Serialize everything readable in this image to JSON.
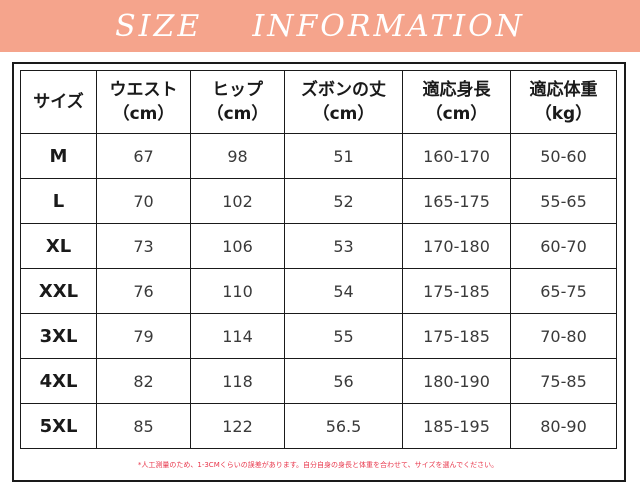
{
  "banner": {
    "title": "SIZE    INFORMATION",
    "color": "#f5a48c"
  },
  "table": {
    "headers": [
      {
        "line1": "サイズ",
        "line2": ""
      },
      {
        "line1": "ウエスト",
        "line2": "（cm）"
      },
      {
        "line1": "ヒップ",
        "line2": "（cm）"
      },
      {
        "line1": "ズボンの丈",
        "line2": "（cm）"
      },
      {
        "line1": "適応身長",
        "line2": "（cm）"
      },
      {
        "line1": "適応体重",
        "line2": "（kg）"
      }
    ],
    "rows": [
      {
        "size": "M",
        "waist": "67",
        "hip": "98",
        "length": "51",
        "height": "160-170",
        "weight": "50-60"
      },
      {
        "size": "L",
        "waist": "70",
        "hip": "102",
        "length": "52",
        "height": "165-175",
        "weight": "55-65"
      },
      {
        "size": "XL",
        "waist": "73",
        "hip": "106",
        "length": "53",
        "height": "170-180",
        "weight": "60-70"
      },
      {
        "size": "XXL",
        "waist": "76",
        "hip": "110",
        "length": "54",
        "height": "175-185",
        "weight": "65-75"
      },
      {
        "size": "3XL",
        "waist": "79",
        "hip": "114",
        "length": "55",
        "height": "175-185",
        "weight": "70-80"
      },
      {
        "size": "4XL",
        "waist": "82",
        "hip": "118",
        "length": "56",
        "height": "180-190",
        "weight": "75-85"
      },
      {
        "size": "5XL",
        "waist": "85",
        "hip": "122",
        "length": "56.5",
        "height": "185-195",
        "weight": "80-90"
      }
    ]
  },
  "note": "*人工測量のため、1-3CMくらいの誤差があります。自分自身の身長と体重を合わせて、サイズを選んでください。",
  "note_color": "#e8364b"
}
